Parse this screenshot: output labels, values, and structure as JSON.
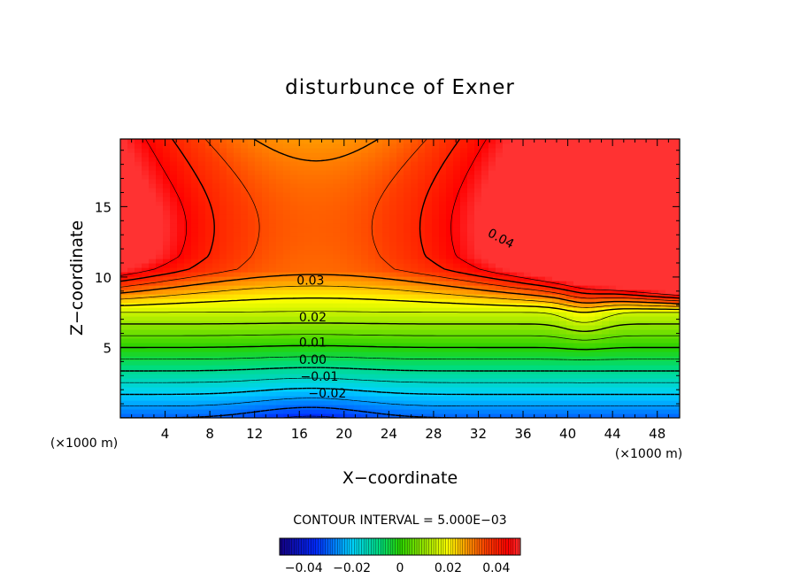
{
  "chart_data": {
    "type": "heatmap",
    "title": "disturbunce of Exner",
    "xlabel": "X−coordinate",
    "ylabel": "Z−coordinate",
    "x_unit": "(×1000 m)",
    "x_unit_right": "(×1000 m)",
    "x_ticks": [
      4,
      8,
      12,
      16,
      20,
      24,
      28,
      32,
      36,
      40,
      44,
      48
    ],
    "y_ticks": [
      5,
      10,
      15
    ],
    "xlim": [
      0,
      50
    ],
    "ylim": [
      0,
      19.8
    ],
    "contour_interval_text": "CONTOUR INTERVAL = 5.000E−03",
    "contour_labels": [
      {
        "text": "0.04",
        "x": 34,
        "z": 12.7
      },
      {
        "text": "0.03",
        "x": 17,
        "z": 9.7
      },
      {
        "text": "0.02",
        "x": 17.2,
        "z": 7.1
      },
      {
        "text": "0.01",
        "x": 17.2,
        "z": 5.3
      },
      {
        "text": "0.00",
        "x": 17.2,
        "z": 4.1
      },
      {
        "text": "−0.01",
        "x": 17.8,
        "z": 2.9
      },
      {
        "text": "−0.02",
        "x": 18.5,
        "z": 1.7
      }
    ],
    "colorbar": {
      "range": [
        -0.05,
        0.05
      ],
      "tick_labels": [
        "−0.04",
        "−0.02",
        "0",
        "0.02",
        "0.04"
      ],
      "tick_values": [
        -0.04,
        -0.02,
        0,
        0.02,
        0.04
      ]
    }
  }
}
